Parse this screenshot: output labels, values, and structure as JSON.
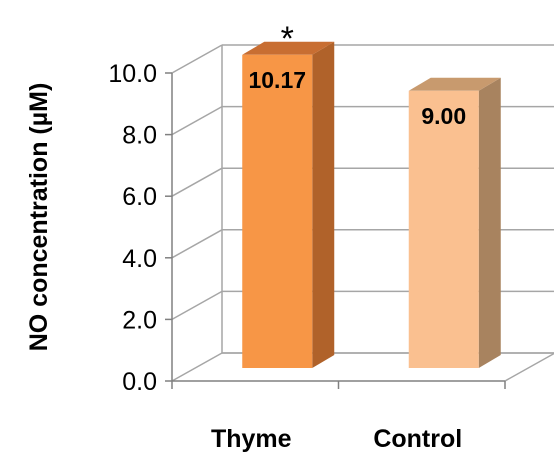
{
  "chart_data": {
    "type": "bar",
    "style": "3d-column",
    "categories": [
      "Thyme",
      "Control"
    ],
    "values": [
      10.17,
      9.0
    ],
    "data_labels": [
      "10.17",
      "9.00"
    ],
    "ylabel": "NO concentration (µM)",
    "ylim": [
      0,
      10
    ],
    "yticks": [
      "0.0",
      "2.0",
      "4.0",
      "6.0",
      "8.0",
      "10.0"
    ],
    "grid": true,
    "legend": "none",
    "annotations": [
      {
        "category": "Thyme",
        "text": "*"
      }
    ],
    "colors": {
      "Thyme": {
        "front": "#F79646",
        "side": "#B0622A",
        "top": "#C86E32"
      },
      "Control": {
        "front": "#FAC090",
        "side": "#A8835F",
        "top": "#C89A6E"
      },
      "grid": "#A6A6A6",
      "axis": "#808080"
    }
  }
}
